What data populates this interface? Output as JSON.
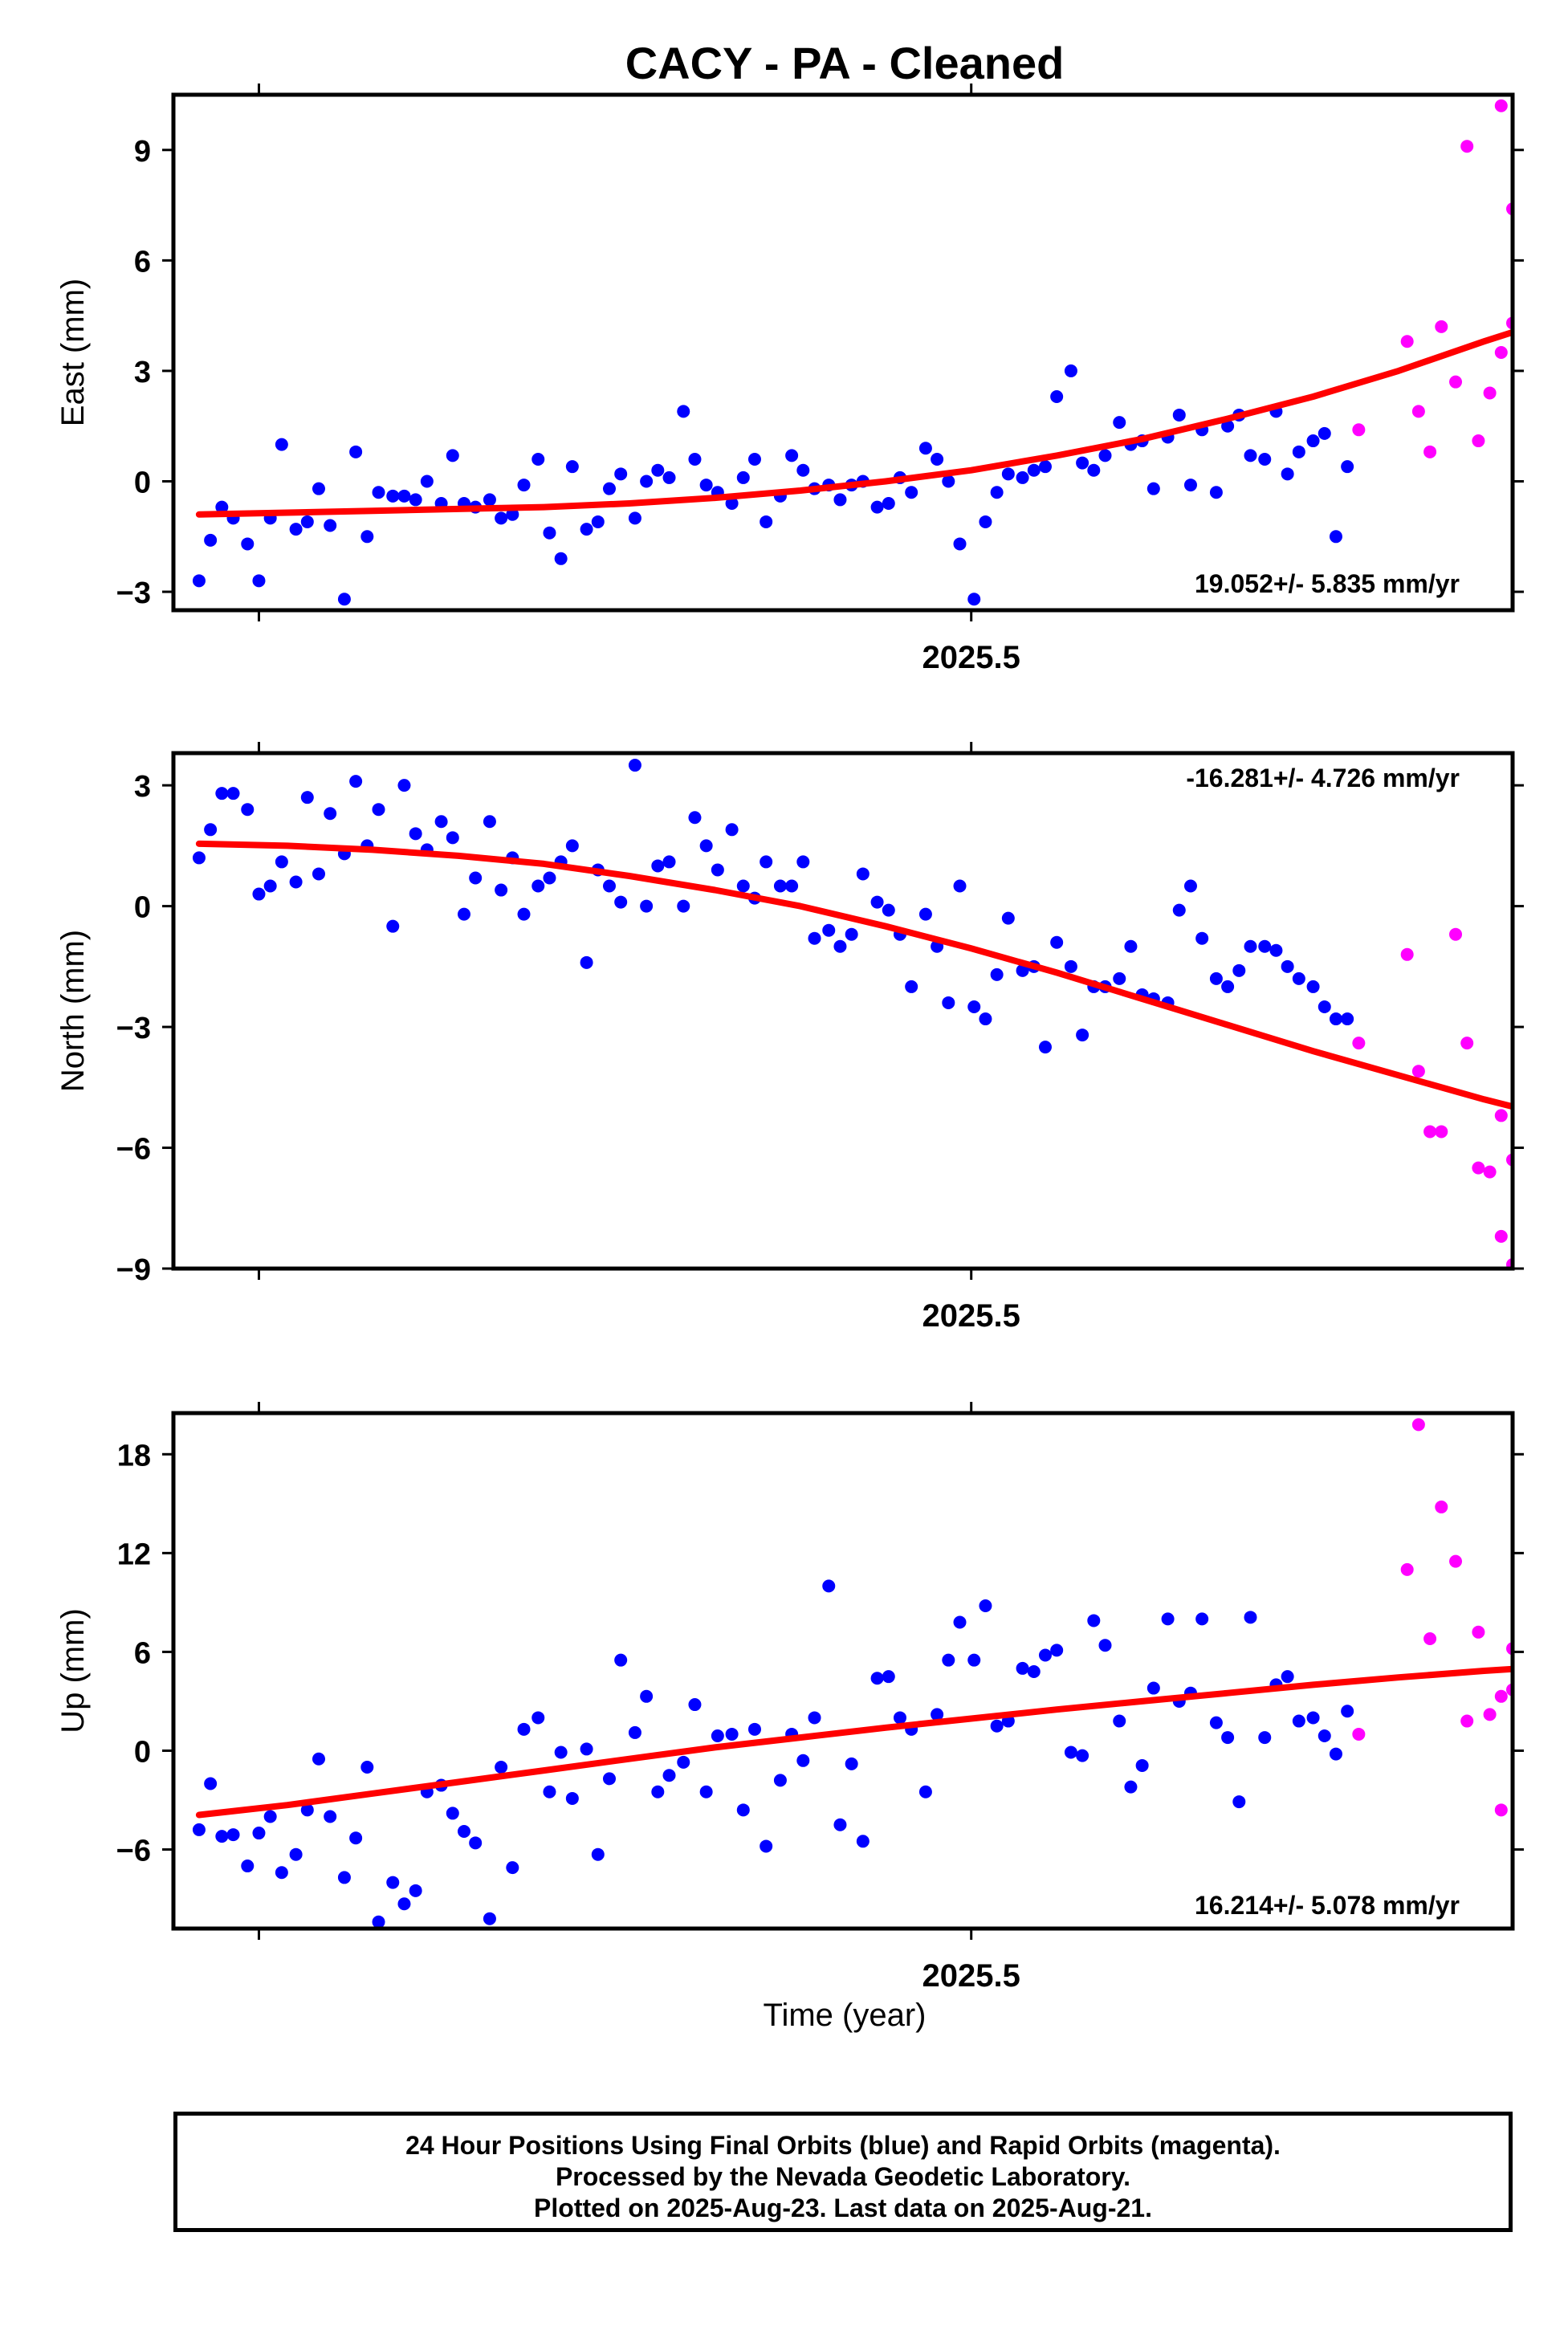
{
  "title": "CACY  - PA - Cleaned",
  "xlabel": "Time (year)",
  "footer": {
    "line1": "24 Hour Positions Using Final Orbits (blue) and Rapid Orbits (magenta).",
    "line2": "Processed by the Nevada Geodetic Laboratory.",
    "line3": "Plotted on 2025-Aug-23. Last data on 2025-Aug-21."
  },
  "colors": {
    "final": "#0000ff",
    "rapid": "#ff00ff",
    "fit": "#ff0000"
  },
  "chart_data": [
    {
      "type": "scatter",
      "ylabel": "East (mm)",
      "xlim": [
        2025.22,
        2025.69
      ],
      "ylim": [
        -3.5,
        10.5
      ],
      "yticks": [
        -3,
        0,
        3,
        6,
        9
      ],
      "xtick_label": "2025.5",
      "rate": "19.052+/- 5.835 mm/yr",
      "final": {
        "x": [
          2025.229,
          2025.233,
          2025.237,
          2025.241,
          2025.246,
          2025.25,
          2025.254,
          2025.258,
          2025.263,
          2025.267,
          2025.271,
          2025.275,
          2025.28,
          2025.284,
          2025.288,
          2025.292,
          2025.297,
          2025.301,
          2025.305,
          2025.309,
          2025.314,
          2025.318,
          2025.322,
          2025.326,
          2025.331,
          2025.335,
          2025.339,
          2025.343,
          2025.348,
          2025.352,
          2025.356,
          2025.36,
          2025.365,
          2025.369,
          2025.373,
          2025.377,
          2025.382,
          2025.386,
          2025.39,
          2025.394,
          2025.399,
          2025.403,
          2025.407,
          2025.411,
          2025.416,
          2025.42,
          2025.424,
          2025.428,
          2025.433,
          2025.437,
          2025.441,
          2025.445,
          2025.45,
          2025.454,
          2025.458,
          2025.462,
          2025.467,
          2025.471,
          2025.475,
          2025.479,
          2025.484,
          2025.488,
          2025.492,
          2025.496,
          2025.501,
          2025.505,
          2025.509,
          2025.513,
          2025.518,
          2025.522,
          2025.526,
          2025.53,
          2025.535,
          2025.539,
          2025.543,
          2025.547,
          2025.552,
          2025.556,
          2025.56,
          2025.564,
          2025.569,
          2025.573,
          2025.577,
          2025.581,
          2025.586,
          2025.59,
          2025.594,
          2025.598,
          2025.603,
          2025.607,
          2025.611,
          2025.615,
          2025.62,
          2025.624,
          2025.628,
          2025.632
        ],
        "y": [
          -2.7,
          -1.6,
          -0.7,
          -1.0,
          -1.7,
          -2.7,
          -1.0,
          1.0,
          -1.3,
          -1.1,
          -0.2,
          -1.2,
          -3.2,
          0.8,
          -1.5,
          -0.3,
          -0.4,
          -0.4,
          -0.5,
          0.0,
          -0.6,
          0.7,
          -0.6,
          -0.7,
          -0.5,
          -1.0,
          -0.9,
          -0.1,
          0.6,
          -1.4,
          -2.1,
          0.4,
          -1.3,
          -1.1,
          -0.2,
          0.2,
          -1.0,
          0.0,
          0.3,
          0.1,
          1.9,
          0.6,
          -0.1,
          -0.3,
          -0.6,
          0.1,
          0.6,
          -1.1,
          -0.4,
          0.7,
          0.3,
          -0.2,
          -0.1,
          -0.5,
          -0.1,
          0.0,
          -0.7,
          -0.6,
          0.1,
          -0.3,
          0.9,
          0.6,
          0.0,
          -1.7,
          -3.2,
          -1.1,
          -0.3,
          0.2,
          0.1,
          0.3,
          0.4,
          2.3,
          3.0,
          0.5,
          0.3,
          0.7,
          1.6,
          1.0,
          1.1,
          -0.2,
          1.2,
          1.8,
          -0.1,
          1.4,
          -0.3,
          1.5,
          1.8,
          0.7,
          0.6,
          1.9,
          0.2,
          0.8,
          1.1,
          1.3,
          -1.5,
          0.4
        ]
      },
      "rapid": {
        "x": [
          2025.636,
          2025.653,
          2025.657,
          2025.661,
          2025.665,
          2025.67,
          2025.674,
          2025.678,
          2025.682,
          2025.686,
          2025.69
        ],
        "y": [
          1.4,
          3.8,
          1.9,
          0.8,
          4.2,
          2.7,
          9.1,
          1.1,
          2.4,
          3.5,
          4.3
        ]
      },
      "rapid_extra": {
        "x": [
          2025.686,
          2025.69
        ],
        "y": [
          10.2,
          7.4
        ]
      },
      "fit": {
        "x": [
          2025.229,
          2025.26,
          2025.29,
          2025.32,
          2025.35,
          2025.38,
          2025.41,
          2025.44,
          2025.47,
          2025.5,
          2025.53,
          2025.56,
          2025.59,
          2025.62,
          2025.65,
          2025.68,
          2025.694
        ],
        "y": [
          -0.9,
          -0.85,
          -0.8,
          -0.75,
          -0.7,
          -0.6,
          -0.45,
          -0.25,
          0.0,
          0.3,
          0.7,
          1.15,
          1.7,
          2.3,
          3.0,
          3.8,
          4.15
        ]
      }
    },
    {
      "type": "scatter",
      "ylabel": "North (mm)",
      "xlim": [
        2025.22,
        2025.69
      ],
      "ylim": [
        -9.0,
        3.8
      ],
      "yticks": [
        -9,
        -6,
        -3,
        0,
        3
      ],
      "xtick_label": "2025.5",
      "rate": "-16.281+/- 4.726 mm/yr",
      "final": {
        "x": [
          2025.229,
          2025.233,
          2025.237,
          2025.241,
          2025.246,
          2025.25,
          2025.254,
          2025.258,
          2025.263,
          2025.267,
          2025.271,
          2025.275,
          2025.28,
          2025.284,
          2025.288,
          2025.292,
          2025.297,
          2025.301,
          2025.305,
          2025.309,
          2025.314,
          2025.318,
          2025.322,
          2025.326,
          2025.331,
          2025.335,
          2025.339,
          2025.343,
          2025.348,
          2025.352,
          2025.356,
          2025.36,
          2025.365,
          2025.369,
          2025.373,
          2025.377,
          2025.382,
          2025.386,
          2025.39,
          2025.394,
          2025.399,
          2025.403,
          2025.407,
          2025.411,
          2025.416,
          2025.42,
          2025.424,
          2025.428,
          2025.433,
          2025.437,
          2025.441,
          2025.445,
          2025.45,
          2025.454,
          2025.458,
          2025.462,
          2025.467,
          2025.471,
          2025.475,
          2025.479,
          2025.484,
          2025.488,
          2025.492,
          2025.496,
          2025.501,
          2025.505,
          2025.509,
          2025.513,
          2025.518,
          2025.522,
          2025.526,
          2025.53,
          2025.535,
          2025.539,
          2025.543,
          2025.547,
          2025.552,
          2025.556,
          2025.56,
          2025.564,
          2025.569,
          2025.573,
          2025.577,
          2025.581,
          2025.586,
          2025.59,
          2025.594,
          2025.598,
          2025.603,
          2025.607,
          2025.611,
          2025.615,
          2025.62,
          2025.624,
          2025.628,
          2025.632
        ],
        "y": [
          1.2,
          1.9,
          2.8,
          2.8,
          2.4,
          0.3,
          0.5,
          1.1,
          0.6,
          2.7,
          0.8,
          2.3,
          1.3,
          3.1,
          1.5,
          2.4,
          -0.5,
          3.0,
          1.8,
          1.4,
          2.1,
          1.7,
          -0.2,
          0.7,
          2.1,
          0.4,
          1.2,
          -0.2,
          0.5,
          0.7,
          1.1,
          1.5,
          -1.4,
          0.9,
          0.5,
          0.1,
          3.5,
          0.0,
          1.0,
          1.1,
          0.0,
          2.2,
          1.5,
          0.9,
          1.9,
          0.5,
          0.2,
          1.1,
          0.5,
          0.5,
          1.1,
          -0.8,
          -0.6,
          -1.0,
          -0.7,
          0.8,
          0.1,
          -0.1,
          -0.7,
          -2.0,
          -0.2,
          -1.0,
          -2.4,
          0.5,
          -2.5,
          -2.8,
          -1.7,
          -0.3,
          -1.6,
          -1.5,
          -3.5,
          -0.9,
          -1.5,
          -3.2,
          -2.0,
          -2.0,
          -1.8,
          -1.0,
          -2.2,
          -2.3,
          -2.4,
          -0.1,
          0.5,
          -0.8,
          -1.8,
          -2.0,
          -1.6,
          -1.0,
          -1.0,
          -1.1,
          -1.5,
          -1.8,
          -2.0,
          -2.5,
          -2.8,
          -2.8
        ]
      },
      "rapid": {
        "x": [
          2025.636,
          2025.653,
          2025.657,
          2025.661,
          2025.665,
          2025.67,
          2025.674,
          2025.678,
          2025.682,
          2025.686,
          2025.69
        ],
        "y": [
          -3.4,
          -1.2,
          -4.1,
          -5.6,
          -5.6,
          -0.7,
          -3.4,
          -6.5,
          -6.6,
          -5.2,
          -8.9
        ]
      },
      "rapid_extra": {
        "x": [
          2025.686,
          2025.69
        ],
        "y": [
          -8.2,
          -6.3
        ]
      },
      "fit": {
        "x": [
          2025.229,
          2025.26,
          2025.29,
          2025.32,
          2025.35,
          2025.38,
          2025.41,
          2025.44,
          2025.47,
          2025.5,
          2025.53,
          2025.56,
          2025.59,
          2025.62,
          2025.65,
          2025.68,
          2025.694
        ],
        "y": [
          1.55,
          1.5,
          1.4,
          1.25,
          1.05,
          0.75,
          0.4,
          0.0,
          -0.5,
          -1.05,
          -1.65,
          -2.3,
          -2.95,
          -3.6,
          -4.2,
          -4.8,
          -5.05
        ]
      }
    },
    {
      "type": "scatter",
      "ylabel": "Up (mm)",
      "xlim": [
        2025.22,
        2025.69
      ],
      "ylim": [
        -10.8,
        20.5
      ],
      "yticks": [
        -6,
        0,
        6,
        12,
        18
      ],
      "xtick_label": "2025.5",
      "rate": "16.214+/- 5.078 mm/yr",
      "final": {
        "x": [
          2025.229,
          2025.233,
          2025.237,
          2025.241,
          2025.246,
          2025.25,
          2025.254,
          2025.258,
          2025.263,
          2025.267,
          2025.271,
          2025.275,
          2025.28,
          2025.284,
          2025.288,
          2025.292,
          2025.297,
          2025.301,
          2025.305,
          2025.309,
          2025.314,
          2025.318,
          2025.322,
          2025.326,
          2025.331,
          2025.335,
          2025.339,
          2025.343,
          2025.348,
          2025.352,
          2025.356,
          2025.36,
          2025.365,
          2025.369,
          2025.373,
          2025.377,
          2025.382,
          2025.386,
          2025.39,
          2025.394,
          2025.399,
          2025.403,
          2025.407,
          2025.411,
          2025.416,
          2025.42,
          2025.424,
          2025.428,
          2025.433,
          2025.437,
          2025.441,
          2025.445,
          2025.45,
          2025.454,
          2025.458,
          2025.462,
          2025.467,
          2025.471,
          2025.475,
          2025.479,
          2025.484,
          2025.488,
          2025.492,
          2025.496,
          2025.501,
          2025.505,
          2025.509,
          2025.513,
          2025.518,
          2025.522,
          2025.526,
          2025.53,
          2025.535,
          2025.539,
          2025.543,
          2025.547,
          2025.552,
          2025.556,
          2025.56,
          2025.564,
          2025.569,
          2025.573,
          2025.577,
          2025.581,
          2025.586,
          2025.59,
          2025.594,
          2025.598,
          2025.603,
          2025.607,
          2025.611,
          2025.615,
          2025.62,
          2025.624,
          2025.628,
          2025.632
        ],
        "y": [
          -4.8,
          -2.0,
          -5.2,
          -5.1,
          -7.0,
          -5.0,
          -4.0,
          -7.4,
          -6.3,
          -3.6,
          -0.5,
          -4.0,
          -7.7,
          -5.3,
          -1.0,
          -10.4,
          -8.0,
          -9.3,
          -8.5,
          -2.5,
          -2.1,
          -3.8,
          -4.9,
          -5.6,
          -10.2,
          -1.0,
          -7.1,
          1.3,
          2.0,
          -2.5,
          -0.1,
          -2.9,
          0.1,
          -6.3,
          -1.7,
          5.5,
          1.1,
          3.3,
          -2.5,
          -1.5,
          -0.7,
          2.8,
          -2.5,
          0.9,
          1.0,
          -3.6,
          1.3,
          -5.8,
          -1.8,
          1.0,
          -0.6,
          2.0,
          10.0,
          -4.5,
          -0.8,
          -5.5,
          4.4,
          4.5,
          2.0,
          1.3,
          -2.5,
          2.2,
          5.5,
          7.8,
          5.5,
          8.8,
          1.5,
          1.8,
          5.0,
          4.8,
          5.8,
          6.1,
          -0.1,
          -0.3,
          7.9,
          6.4,
          1.8,
          -2.2,
          -0.9,
          3.8,
          8.0,
          3.0,
          3.5,
          8.0,
          1.7,
          0.8,
          -3.1,
          8.1,
          0.8,
          4.0,
          4.5,
          1.8,
          2.0,
          0.9,
          -0.2,
          2.4
        ]
      },
      "rapid": {
        "x": [
          2025.636,
          2025.653,
          2025.657,
          2025.661,
          2025.665,
          2025.67,
          2025.674,
          2025.678,
          2025.682,
          2025.686,
          2025.69
        ],
        "y": [
          1.0,
          11.0,
          19.8,
          6.8,
          14.8,
          11.5,
          1.8,
          7.2,
          2.2,
          -3.6,
          3.7
        ]
      },
      "rapid_extra": {
        "x": [
          2025.686,
          2025.69
        ],
        "y": [
          3.3,
          6.2
        ]
      },
      "fit": {
        "x": [
          2025.229,
          2025.26,
          2025.29,
          2025.32,
          2025.35,
          2025.38,
          2025.41,
          2025.44,
          2025.47,
          2025.5,
          2025.53,
          2025.56,
          2025.59,
          2025.62,
          2025.65,
          2025.68,
          2025.694
        ],
        "y": [
          -3.9,
          -3.3,
          -2.6,
          -1.9,
          -1.2,
          -0.5,
          0.2,
          0.8,
          1.4,
          1.95,
          2.5,
          3.0,
          3.5,
          4.0,
          4.45,
          4.85,
          5.0
        ]
      }
    }
  ]
}
